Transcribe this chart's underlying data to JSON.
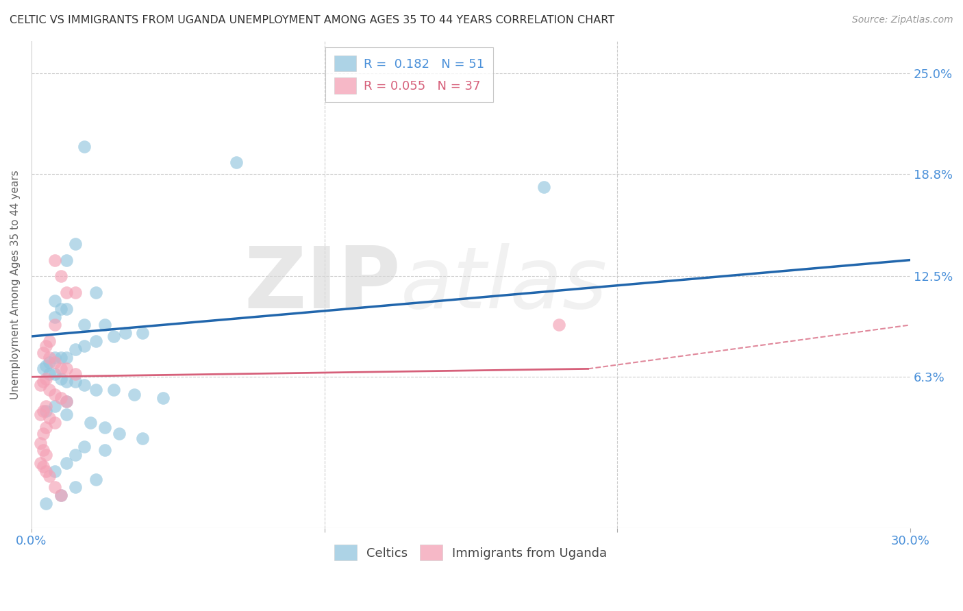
{
  "title": "CELTIC VS IMMIGRANTS FROM UGANDA UNEMPLOYMENT AMONG AGES 35 TO 44 YEARS CORRELATION CHART",
  "source": "Source: ZipAtlas.com",
  "ylabel": "Unemployment Among Ages 35 to 44 years",
  "xlim": [
    0.0,
    0.3
  ],
  "ylim": [
    -0.03,
    0.27
  ],
  "yticks": [
    0.063,
    0.125,
    0.188,
    0.25
  ],
  "ytick_labels": [
    "6.3%",
    "12.5%",
    "18.8%",
    "25.0%"
  ],
  "xticks": [
    0.0,
    0.1,
    0.2,
    0.3
  ],
  "xtick_labels": [
    "0.0%",
    "",
    "",
    "30.0%"
  ],
  "watermark_zip": "ZIP",
  "watermark_atlas": "atlas",
  "legend1_label": "Celtics",
  "legend2_label": "Immigrants from Uganda",
  "R1": 0.182,
  "N1": 51,
  "R2": 0.055,
  "N2": 37,
  "celtics_color": "#92c5de",
  "uganda_color": "#f4a0b5",
  "line1_color": "#2166ac",
  "line2_color": "#d6607a",
  "celtics_x": [
    0.018,
    0.07,
    0.175,
    0.015,
    0.012,
    0.022,
    0.008,
    0.012,
    0.01,
    0.008,
    0.018,
    0.025,
    0.032,
    0.038,
    0.028,
    0.022,
    0.018,
    0.015,
    0.012,
    0.01,
    0.008,
    0.006,
    0.005,
    0.004,
    0.006,
    0.008,
    0.01,
    0.012,
    0.015,
    0.018,
    0.022,
    0.028,
    0.035,
    0.045,
    0.012,
    0.008,
    0.005,
    0.012,
    0.02,
    0.025,
    0.03,
    0.038,
    0.018,
    0.025,
    0.015,
    0.012,
    0.008,
    0.022,
    0.015,
    0.01,
    0.005
  ],
  "celtics_y": [
    0.205,
    0.195,
    0.18,
    0.145,
    0.135,
    0.115,
    0.11,
    0.105,
    0.105,
    0.1,
    0.095,
    0.095,
    0.09,
    0.09,
    0.088,
    0.085,
    0.082,
    0.08,
    0.075,
    0.075,
    0.075,
    0.072,
    0.07,
    0.068,
    0.065,
    0.065,
    0.062,
    0.06,
    0.06,
    0.058,
    0.055,
    0.055,
    0.052,
    0.05,
    0.048,
    0.045,
    0.042,
    0.04,
    0.035,
    0.032,
    0.028,
    0.025,
    0.02,
    0.018,
    0.015,
    0.01,
    0.005,
    0.0,
    -0.005,
    -0.01,
    -0.015
  ],
  "uganda_x": [
    0.008,
    0.01,
    0.012,
    0.015,
    0.008,
    0.006,
    0.005,
    0.004,
    0.006,
    0.008,
    0.01,
    0.012,
    0.015,
    0.18,
    0.005,
    0.004,
    0.003,
    0.006,
    0.008,
    0.01,
    0.012,
    0.005,
    0.004,
    0.003,
    0.006,
    0.008,
    0.005,
    0.004,
    0.003,
    0.004,
    0.005,
    0.003,
    0.004,
    0.005,
    0.006,
    0.008,
    0.01
  ],
  "uganda_y": [
    0.135,
    0.125,
    0.115,
    0.115,
    0.095,
    0.085,
    0.082,
    0.078,
    0.075,
    0.072,
    0.068,
    0.068,
    0.065,
    0.095,
    0.062,
    0.06,
    0.058,
    0.055,
    0.052,
    0.05,
    0.048,
    0.045,
    0.042,
    0.04,
    0.038,
    0.035,
    0.032,
    0.028,
    0.022,
    0.018,
    0.015,
    0.01,
    0.008,
    0.005,
    0.002,
    -0.005,
    -0.01
  ],
  "background_color": "#ffffff",
  "grid_color": "#cccccc",
  "title_color": "#333333",
  "axis_label_color": "#666666",
  "tick_color": "#4a90d9",
  "legend_text_color1": "#4a90d9",
  "legend_text_color2": "#d6607a",
  "fig_width": 14.06,
  "fig_height": 8.92,
  "dpi": 100,
  "blue_line_y0": 0.088,
  "blue_line_y1": 0.135,
  "pink_line_solid_x0": 0.0,
  "pink_line_solid_x1": 0.19,
  "pink_line_solid_y0": 0.063,
  "pink_line_solid_y1": 0.068,
  "pink_line_dash_x0": 0.19,
  "pink_line_dash_x1": 0.3,
  "pink_line_dash_y0": 0.068,
  "pink_line_dash_y1": 0.095
}
